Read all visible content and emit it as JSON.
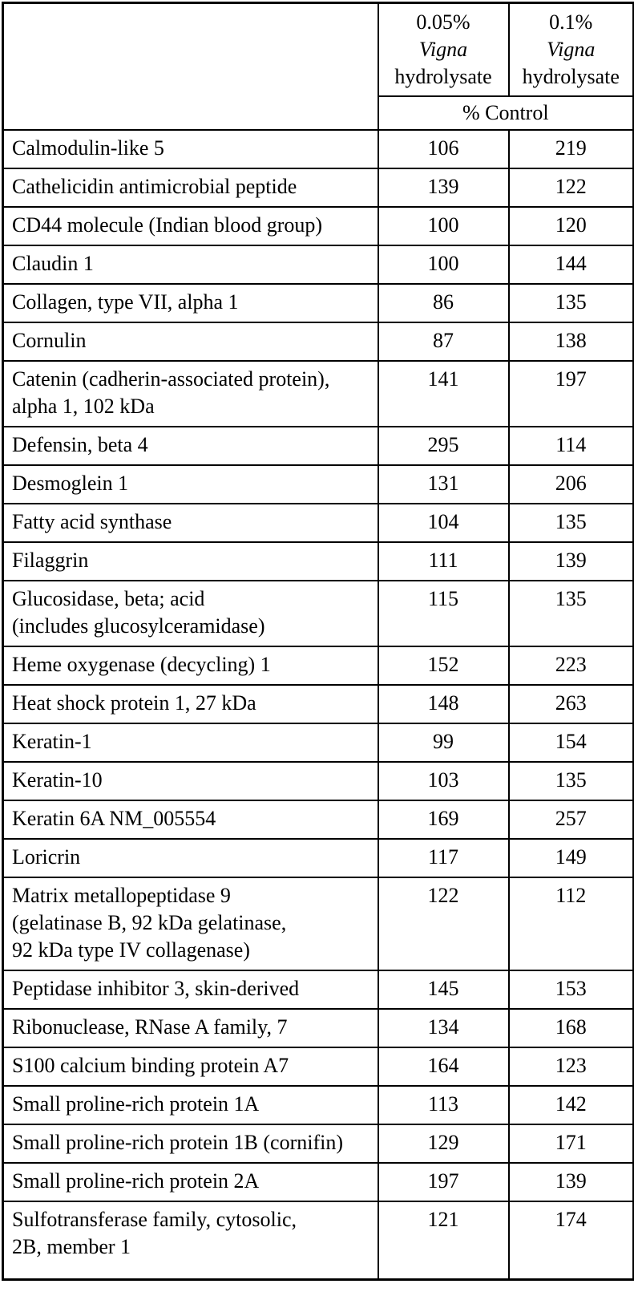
{
  "table": {
    "columns": [
      {
        "pct": "0.05%",
        "species": "Vigna",
        "suffix": "hydrolysate"
      },
      {
        "pct": "0.1%",
        "species": "Vigna",
        "suffix": "hydrolysate"
      }
    ],
    "subheader": "% Control",
    "rows": [
      {
        "name": "Calmodulin-like 5",
        "v1": "106",
        "v2": "219"
      },
      {
        "name": "Cathelicidin antimicrobial peptide",
        "v1": "139",
        "v2": "122"
      },
      {
        "name": "CD44 molecule (Indian blood group)",
        "v1": "100",
        "v2": "120"
      },
      {
        "name": "Claudin 1",
        "v1": "100",
        "v2": "144"
      },
      {
        "name": "Collagen, type VII, alpha 1",
        "v1": "86",
        "v2": "135"
      },
      {
        "name": "Cornulin",
        "v1": "87",
        "v2": "138"
      },
      {
        "name": "Catenin (cadherin-associated protein),\nalpha 1, 102 kDa",
        "v1": "141",
        "v2": "197"
      },
      {
        "name": "Defensin, beta 4",
        "v1": "295",
        "v2": "114"
      },
      {
        "name": "Desmoglein 1",
        "v1": "131",
        "v2": "206"
      },
      {
        "name": "Fatty acid synthase",
        "v1": "104",
        "v2": "135"
      },
      {
        "name": "Filaggrin",
        "v1": "111",
        "v2": "139"
      },
      {
        "name": "Glucosidase, beta; acid\n(includes glucosylceramidase)",
        "v1": "115",
        "v2": "135"
      },
      {
        "name": "Heme oxygenase (decycling) 1",
        "v1": "152",
        "v2": "223"
      },
      {
        "name": "Heat shock protein 1, 27 kDa",
        "v1": "148",
        "v2": "263"
      },
      {
        "name": "Keratin-1",
        "v1": "99",
        "v2": "154"
      },
      {
        "name": "Keratin-10",
        "v1": "103",
        "v2": "135"
      },
      {
        "name": "Keratin 6A NM_005554",
        "v1": "169",
        "v2": "257"
      },
      {
        "name": "Loricrin",
        "v1": "117",
        "v2": "149"
      },
      {
        "name": "Matrix metallopeptidase 9\n(gelatinase B, 92 kDa gelatinase,\n92 kDa type IV collagenase)",
        "v1": "122",
        "v2": "112"
      },
      {
        "name": "Peptidase inhibitor 3, skin-derived",
        "v1": "145",
        "v2": "153"
      },
      {
        "name": "Ribonuclease, RNase A family, 7",
        "v1": "134",
        "v2": "168"
      },
      {
        "name": "S100 calcium binding protein A7",
        "v1": "164",
        "v2": "123"
      },
      {
        "name": "Small proline-rich protein 1A",
        "v1": "113",
        "v2": "142"
      },
      {
        "name": "Small proline-rich protein 1B (cornifin)",
        "v1": "129",
        "v2": "171"
      },
      {
        "name": "Small proline-rich protein 2A",
        "v1": "197",
        "v2": "139"
      },
      {
        "name": "Sulfotransferase family, cytosolic,\n2B, member 1",
        "v1": "121",
        "v2": "174"
      }
    ]
  }
}
